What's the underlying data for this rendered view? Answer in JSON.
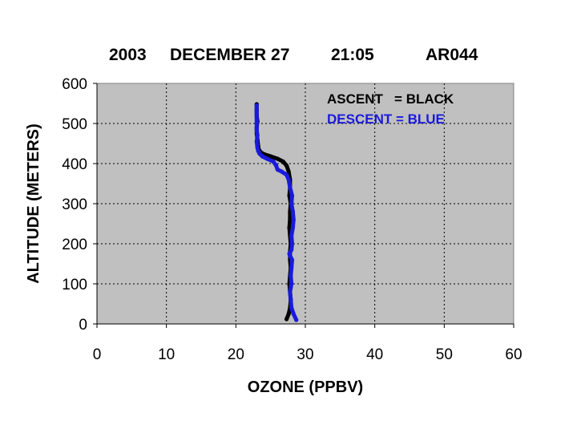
{
  "chart_data": {
    "type": "line",
    "title": {
      "year": "2003",
      "date": "DECEMBER 27",
      "time": "21:05",
      "id": "AR044"
    },
    "xlabel": "OZONE (PPBV)",
    "ylabel": "ALTITUDE (METERS)",
    "xlim": [
      0,
      60
    ],
    "ylim": [
      0,
      600
    ],
    "x_ticks": [
      "0",
      "10",
      "20",
      "30",
      "40",
      "50",
      "60"
    ],
    "y_ticks": [
      "0",
      "100",
      "200",
      "300",
      "400",
      "500",
      "600"
    ],
    "grid": true,
    "plot_background": "#c0c0c0",
    "legend_placement": "top-right",
    "legend": [
      {
        "text": "ASCENT   = BLACK",
        "color": "#000000"
      },
      {
        "text": "DESCENT = BLUE",
        "color": "#1a1adc"
      }
    ],
    "series": [
      {
        "color": "#000000",
        "x": [
          27.3,
          27.6,
          27.8,
          27.9,
          27.8,
          27.7,
          27.8,
          27.9,
          27.8,
          27.8,
          27.9,
          27.8,
          27.7,
          27.8,
          27.8,
          27.9,
          27.7,
          27.8,
          27.8,
          27.6,
          27.3,
          26.8,
          26.0,
          25.0,
          24.1,
          23.6,
          23.3,
          23.2,
          23.1,
          23.0,
          23.0,
          23.1,
          23.0,
          23.0,
          23.0
        ],
        "y": [
          12,
          25,
          40,
          60,
          80,
          100,
          120,
          140,
          160,
          180,
          200,
          220,
          240,
          260,
          280,
          300,
          320,
          340,
          360,
          380,
          395,
          405,
          412,
          418,
          423,
          428,
          435,
          445,
          460,
          475,
          490,
          505,
          520,
          535,
          548
        ]
      },
      {
        "color": "#1a1adc",
        "x": [
          28.7,
          28.3,
          28.0,
          27.9,
          27.8,
          28.0,
          27.9,
          28.0,
          28.1,
          27.8,
          27.7,
          28.0,
          28.1,
          28.0,
          28.2,
          28.3,
          28.2,
          28.0,
          28.1,
          27.8,
          27.6,
          27.3,
          26.6,
          26.0,
          25.8,
          25.4,
          24.5,
          23.8,
          23.4,
          23.2,
          23.1,
          23.0,
          23.1,
          23.0,
          23.0,
          23.0,
          23.0,
          23.0
        ],
        "y": [
          10,
          25,
          40,
          60,
          80,
          100,
          120,
          140,
          160,
          170,
          175,
          185,
          200,
          220,
          240,
          260,
          280,
          300,
          320,
          340,
          360,
          372,
          380,
          385,
          395,
          405,
          412,
          418,
          425,
          432,
          440,
          455,
          470,
          485,
          500,
          515,
          530,
          545
        ]
      }
    ]
  }
}
